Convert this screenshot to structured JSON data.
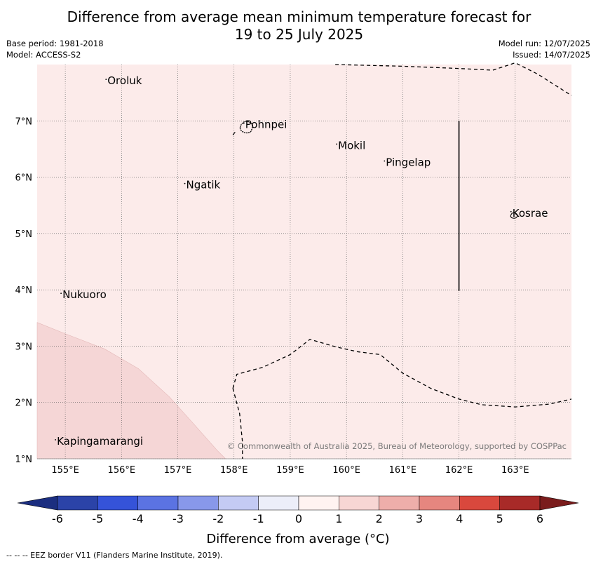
{
  "title_line1": "Difference from average mean minimum temperature forecast for",
  "title_line2": "19 to 25 July 2025",
  "meta_left": {
    "base_period": "Base period: 1981-2018",
    "model": "Model: ACCESS-S2"
  },
  "meta_right": {
    "model_run": "Model run: 12/07/2025",
    "issued": "Issued: 14/07/2025"
  },
  "map": {
    "lon_ticks": [
      "155°E",
      "156°E",
      "157°E",
      "158°E",
      "159°E",
      "160°E",
      "161°E",
      "162°E",
      "163°E"
    ],
    "lat_ticks": [
      "7°N",
      "6°N",
      "5°N",
      "4°N",
      "3°N",
      "2°N",
      "1°N"
    ],
    "lon_range": [
      154.5,
      164.0
    ],
    "lat_range": [
      1.0,
      8.0
    ],
    "background_anomaly_color": "#fcebea",
    "warm_zone_color": "#f5d6d6",
    "places": [
      {
        "name": "Oroluk",
        "lon": 155.75,
        "lat": 7.65
      },
      {
        "name": "Pohnpei",
        "lon": 158.2,
        "lat": 6.87
      },
      {
        "name": "Mokil",
        "lon": 159.85,
        "lat": 6.5
      },
      {
        "name": "Pingelap",
        "lon": 160.7,
        "lat": 6.2
      },
      {
        "name": "Ngatik",
        "lon": 157.15,
        "lat": 5.8
      },
      {
        "name": "Kosrae",
        "lon": 162.95,
        "lat": 5.3
      },
      {
        "name": "Nukuoro",
        "lon": 154.95,
        "lat": 3.85
      },
      {
        "name": "Kapingamarangi",
        "lon": 154.85,
        "lat": 1.25
      }
    ],
    "copyright": "© Commonwealth of Australia 2025, Bureau of Meteorology, supported by COSPPac"
  },
  "colorbar": {
    "tick_labels": [
      "-6",
      "-5",
      "-4",
      "-3",
      "-2",
      "-1",
      "0",
      "1",
      "2",
      "3",
      "4",
      "5",
      "6"
    ],
    "colors": [
      "#2b43a8",
      "#3553d9",
      "#5b73e2",
      "#8898ea",
      "#c4cbf4",
      "#eceef9",
      "#fff3f1",
      "#f7d6d4",
      "#eeaeaa",
      "#e6867f",
      "#d9483d",
      "#a82a28"
    ],
    "under_color": "#1b2e80",
    "over_color": "#7a1c1c",
    "label": "Difference from average (°C)"
  },
  "footer": "--  --  -- EEZ border V11 (Flanders Marine Institute, 2019)."
}
